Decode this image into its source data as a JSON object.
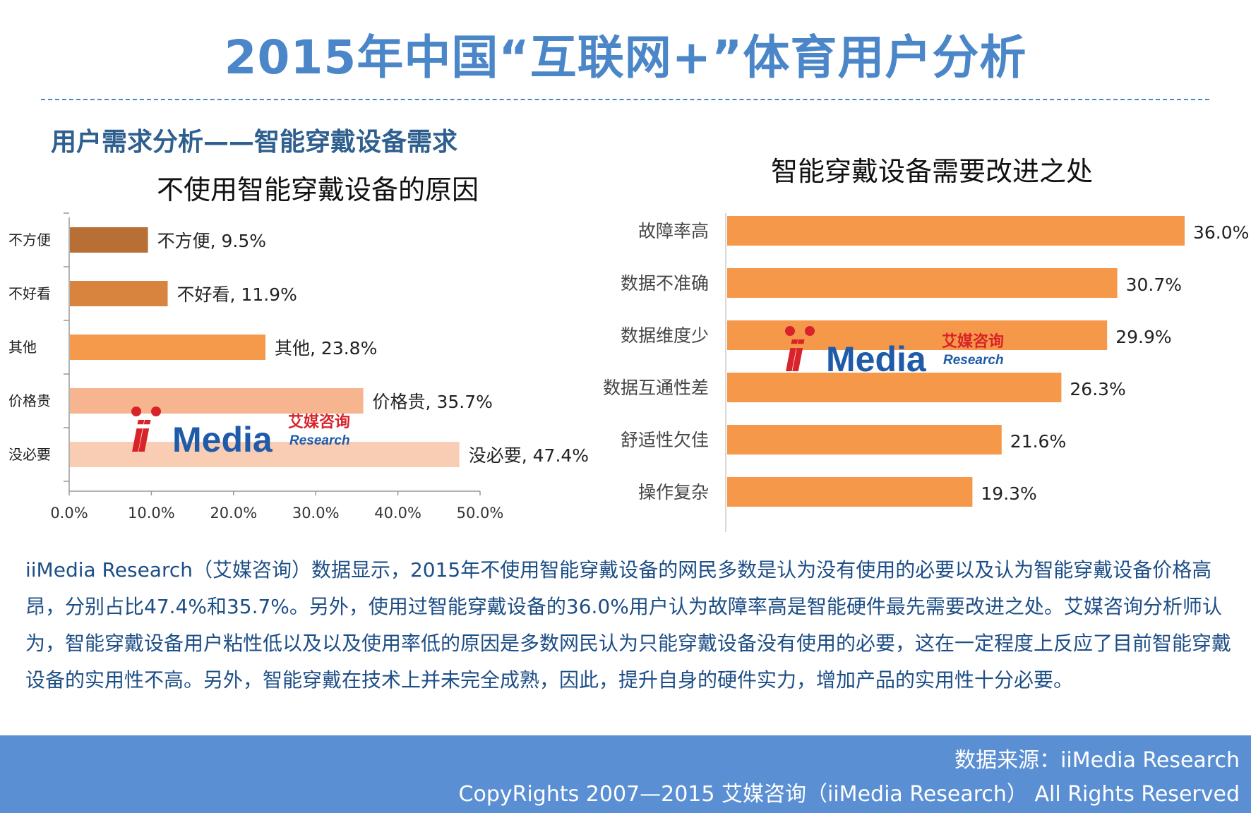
{
  "page": {
    "title": "2015年中国“互联网+”体育用户分析",
    "section_title": "用户需求分析——智能穿戴设备需求"
  },
  "logo": {
    "brand_latin": "Media",
    "brand_prefix": "ii",
    "brand_cn": "艾媒咨询",
    "brand_sub": "Research",
    "colors": {
      "red": "#d8232a",
      "blue": "#1f5ba8"
    }
  },
  "chart_data": [
    {
      "type": "bar",
      "orientation": "horizontal",
      "title": "不使用智能穿戴设备的原因",
      "categories": [
        "不方便",
        "不好看",
        "其他",
        "价格贵",
        "没必要"
      ],
      "values": [
        9.5,
        11.9,
        23.8,
        35.7,
        47.4
      ],
      "data_labels": [
        "不方便, 9.5%",
        "不好看, 11.9%",
        "其他, 23.8%",
        "价格贵, 35.7%",
        "没必要, 47.4%"
      ],
      "xlim": [
        0,
        50
      ],
      "x_ticks": [
        "0.0%",
        "10.0%",
        "20.0%",
        "30.0%",
        "40.0%",
        "50.0%"
      ],
      "bar_colors": [
        "#b86f36",
        "#d9843e",
        "#f49a4a",
        "#f6b48f",
        "#f9cdb3"
      ]
    },
    {
      "type": "bar",
      "orientation": "horizontal",
      "title": "智能穿戴设备需要改进之处",
      "categories": [
        "故障率高",
        "数据不准确",
        "数据维度少",
        "数据互通性差",
        "舒适性欠佳",
        "操作复杂"
      ],
      "values": [
        36.0,
        30.7,
        29.9,
        26.3,
        21.6,
        19.3
      ],
      "data_labels": [
        "36.0%",
        "30.7%",
        "29.9%",
        "26.3%",
        "21.6%",
        "19.3%"
      ],
      "xlim": [
        0,
        36
      ],
      "bar_color": "#f6984a"
    }
  ],
  "description": "iiMedia Research（艾媒咨询）数据显示，2015年不使用智能穿戴设备的网民多数是认为没有使用的必要以及认为智能穿戴设备价格高昂，分别占比47.4%和35.7%。另外，使用过智能穿戴设备的36.0%用户认为故障率高是智能硬件最先需要改进之处。艾媒咨询分析师认为，智能穿戴设备用户粘性低以及以及使用率低的原因是多数网民认为只能穿戴设备没有使用的必要，这在一定程度上反应了目前智能穿戴设备的实用性不高。另外，智能穿戴在技术上并未完全成熟，因此，提升自身的硬件实力，增加产品的实用性十分必要。",
  "footer": {
    "source": "数据来源：iiMedia Research",
    "copyright": "CopyRights 2007—2015 艾媒咨询（iiMedia Research） All Rights Reserved"
  }
}
